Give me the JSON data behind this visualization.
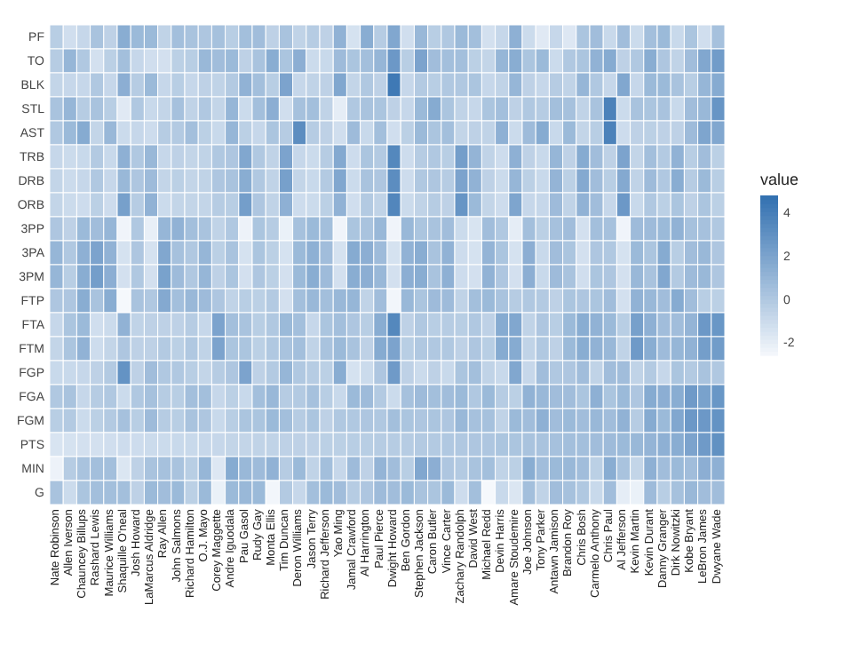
{
  "chart_data": {
    "type": "heatmap",
    "clabel": "value",
    "categories": [
      "Nate Robinson",
      "Allen Iverson",
      "Chauncey Billups",
      "Rashard Lewis",
      "Maurice Williams",
      "Shaquille O'neal",
      "Josh Howard",
      "LaMarcus Aldridge",
      "Ray Allen",
      "John Salmons",
      "Richard Hamilton",
      "O.J. Mayo",
      "Corey Maggette",
      "Andre Iguodala",
      "Pau Gasol",
      "Rudy Gay",
      "Monta Ellis",
      "Tim Duncan",
      "Deron Williams",
      "Jason Terry",
      "Richard Jefferson",
      "Yao Ming",
      "Jamal Crawford",
      "Al Harrington",
      "Paul Pierce",
      "Dwight Howard",
      "Ben Gordon",
      "Stephen Jackson",
      "Caron Butler",
      "Vince Carter",
      "Zachary Randolph",
      "David West",
      "Michael Redd",
      "Devin Harris",
      "Amare Stoudemire",
      "Joe Johnson",
      "Tony Parker",
      "Antawn Jamison",
      "Brandon Roy",
      "Chris Bosh",
      "Carmelo Anthony",
      "Chris Paul",
      "Al Jefferson",
      "Kevin Martin",
      "Kevin Durant",
      "Danny Granger",
      "Dirk Nowitzki",
      "Kobe Bryant",
      "LeBron James",
      "Dwyane Wade"
    ],
    "y_categories": [
      "PF",
      "TO",
      "BLK",
      "STL",
      "AST",
      "TRB",
      "DRB",
      "ORB",
      "3PP",
      "3PA",
      "3PM",
      "FTP",
      "FTA",
      "FTM",
      "FGP",
      "FGA",
      "FGM",
      "PTS",
      "MIN",
      "G"
    ],
    "cells": [
      [
        -0.3,
        -1.2,
        -0.8,
        0.3,
        -0.5,
        1.5,
        0.8,
        0.8,
        -0.6,
        0.5,
        0.3,
        0.1,
        0.4,
        -0.3,
        0.5,
        0.6,
        -0.5,
        0.3,
        -0.6,
        -0.2,
        -0.5,
        1.2,
        -1.4,
        1.5,
        -0.2,
        1.8,
        -1.2,
        0.9,
        -0.3,
        0.0,
        0.8,
        0.5,
        -1.3,
        -0.8,
        1.3,
        -1.0,
        -1.8,
        -0.8,
        -1.7,
        0.2,
        0.6,
        -0.9,
        0.6,
        -1.0,
        0.5,
        0.8,
        -0.9,
        0.2,
        -1.2,
        0.4
      ],
      [
        -0.2,
        1.0,
        0.0,
        -1.3,
        -0.4,
        0.5,
        -0.8,
        -1.2,
        -1.3,
        -0.4,
        -0.3,
        0.9,
        0.6,
        0.8,
        -0.5,
        0.3,
        1.5,
        0.2,
        1.4,
        -1.0,
        -0.9,
        0.7,
        0.2,
        0.5,
        1.0,
        2.6,
        -0.3,
        2.0,
        0.6,
        0.5,
        0.5,
        -0.4,
        -0.7,
        1.0,
        1.5,
        0.2,
        0.8,
        -1.0,
        0.0,
        0.2,
        1.2,
        1.6,
        -0.5,
        0.0,
        1.5,
        0.1,
        -0.6,
        0.6,
        1.8,
        2.4
      ],
      [
        -0.7,
        -0.8,
        -0.8,
        0.0,
        -0.8,
        1.4,
        -0.2,
        0.8,
        -0.8,
        -0.3,
        -0.8,
        -0.5,
        -0.6,
        -0.1,
        1.2,
        0.5,
        -0.3,
        2.0,
        -0.8,
        -0.6,
        -0.5,
        1.8,
        -0.7,
        0.0,
        -0.5,
        4.3,
        -0.8,
        -0.1,
        -0.3,
        0.0,
        0.0,
        0.2,
        -0.8,
        -0.6,
        1.0,
        -0.5,
        -0.8,
        -0.2,
        -0.6,
        1.0,
        0.0,
        -0.8,
        1.8,
        -0.8,
        0.8,
        0.8,
        0.3,
        -0.3,
        1.0,
        1.6
      ],
      [
        0.3,
        1.0,
        -0.2,
        0.3,
        -0.3,
        -1.8,
        0.0,
        -0.9,
        -0.7,
        0.4,
        -0.6,
        0.0,
        -0.7,
        1.0,
        -1.0,
        0.5,
        1.4,
        -1.2,
        0.4,
        0.5,
        -0.6,
        -2.0,
        0.0,
        0.3,
        0.2,
        -0.5,
        -0.8,
        0.8,
        1.6,
        0.2,
        -0.6,
        -0.8,
        0.2,
        0.5,
        -0.5,
        0.0,
        -0.2,
        0.5,
        0.4,
        -0.6,
        0.3,
        3.8,
        -1.0,
        0.3,
        0.2,
        0.3,
        -0.9,
        0.6,
        0.9,
        2.8
      ],
      [
        0.0,
        0.8,
        1.6,
        -0.7,
        0.9,
        -1.0,
        -0.8,
        -1.1,
        -0.2,
        -0.1,
        0.5,
        -0.4,
        -0.9,
        1.0,
        -0.4,
        -0.8,
        0.2,
        -0.2,
        3.2,
        -0.2,
        -0.5,
        -1.2,
        0.7,
        -0.9,
        0.5,
        -1.2,
        -0.4,
        0.8,
        0.2,
        0.5,
        -0.7,
        -0.5,
        -0.6,
        1.3,
        -1.0,
        0.7,
        1.6,
        -0.9,
        0.8,
        -0.7,
        -0.3,
        3.8,
        -1.1,
        -0.5,
        -0.4,
        -0.5,
        -0.5,
        0.7,
        1.9,
        1.8
      ],
      [
        -0.8,
        -1.0,
        -0.9,
        -0.1,
        -0.9,
        1.3,
        0.0,
        0.9,
        -0.8,
        -0.5,
        -0.7,
        -0.6,
        0.0,
        0.1,
        1.8,
        0.0,
        -0.6,
        2.0,
        -0.8,
        -1.0,
        -0.2,
        1.7,
        -1.1,
        0.2,
        -0.1,
        3.5,
        -1.1,
        -0.2,
        0.0,
        -0.3,
        2.3,
        1.1,
        -0.6,
        -1.1,
        1.3,
        -0.5,
        -0.9,
        1.0,
        -0.5,
        1.6,
        0.6,
        -0.5,
        2.0,
        -0.7,
        0.5,
        -0.1,
        1.2,
        -0.3,
        0.6,
        -0.4
      ],
      [
        -0.7,
        -1.0,
        -0.8,
        0.0,
        -0.8,
        0.9,
        0.1,
        0.7,
        -0.7,
        -0.4,
        -0.7,
        -0.6,
        0.1,
        0.3,
        1.5,
        0.0,
        -0.6,
        2.2,
        -0.7,
        -0.9,
        -0.1,
        1.8,
        -1.0,
        0.3,
        0.1,
        3.2,
        -1.1,
        0.0,
        0.1,
        -0.2,
        2.0,
        1.2,
        -0.5,
        -1.0,
        1.0,
        -0.4,
        -0.9,
        1.1,
        -0.4,
        1.7,
        0.6,
        -0.3,
        1.7,
        -0.6,
        0.7,
        0.0,
        1.5,
        -0.2,
        0.8,
        -0.3
      ],
      [
        -0.7,
        -1.0,
        -1.1,
        -0.4,
        -1.1,
        2.2,
        -0.2,
        1.2,
        -1.0,
        -0.7,
        -0.7,
        -0.7,
        -0.2,
        -0.3,
        2.3,
        0.1,
        -0.6,
        1.3,
        -1.1,
        -1.0,
        -0.4,
        1.2,
        -1.2,
        -0.1,
        -0.6,
        3.6,
        -1.0,
        -0.6,
        -0.2,
        -0.5,
        2.8,
        0.8,
        -0.7,
        -1.1,
        1.9,
        -0.8,
        -0.8,
        0.7,
        -0.6,
        1.2,
        0.6,
        -0.8,
        2.6,
        -0.9,
        0.0,
        -0.4,
        0.2,
        -0.5,
        0.2,
        -0.4
      ],
      [
        0.1,
        -0.5,
        0.8,
        0.6,
        1.0,
        -2.4,
        0.0,
        -2.1,
        1.0,
        1.2,
        0.5,
        0.3,
        -0.6,
        0.0,
        -2.3,
        0.2,
        -0.2,
        -2.2,
        0.4,
        0.8,
        0.5,
        -2.4,
        0.2,
        0.3,
        0.9,
        -2.4,
        0.9,
        0.2,
        0.3,
        0.6,
        -1.0,
        -1.5,
        0.6,
        0.0,
        -2.0,
        0.5,
        -0.4,
        0.4,
        0.6,
        -1.3,
        0.5,
        0.4,
        -2.4,
        0.7,
        0.7,
        0.8,
        1.2,
        0.4,
        0.4,
        0.0
      ],
      [
        1.0,
        0.0,
        1.3,
        2.0,
        1.2,
        -1.4,
        0.1,
        -1.4,
        1.8,
        0.4,
        0.0,
        1.0,
        -0.4,
        0.3,
        -1.4,
        0.2,
        -0.4,
        -1.4,
        0.8,
        1.3,
        0.6,
        -1.4,
        1.6,
        1.4,
        0.7,
        -1.4,
        1.2,
        1.5,
        0.3,
        1.2,
        -1.1,
        -1.4,
        1.1,
        0.2,
        -1.4,
        1.4,
        -0.9,
        0.6,
        0.2,
        -1.3,
        0.1,
        0.0,
        -1.4,
        0.8,
        0.2,
        1.6,
        -0.3,
        0.6,
        0.9,
        0.1
      ],
      [
        1.0,
        -0.3,
        1.5,
        2.3,
        1.4,
        -1.3,
        0.0,
        -1.3,
        2.1,
        0.7,
        0.0,
        1.0,
        -0.5,
        0.2,
        -1.3,
        0.1,
        -0.4,
        -1.3,
        0.8,
        1.5,
        0.7,
        -1.3,
        1.5,
        1.4,
        0.9,
        -1.3,
        1.4,
        1.5,
        0.3,
        1.3,
        -1.1,
        -1.3,
        1.2,
        0.1,
        -1.3,
        1.4,
        -0.9,
        0.7,
        0.3,
        -1.2,
        0.2,
        0.1,
        -1.3,
        0.9,
        0.3,
        1.8,
        -0.1,
        0.7,
        0.9,
        0.1
      ],
      [
        0.1,
        0.1,
        1.5,
        0.3,
        1.5,
        -2.6,
        0.3,
        0.0,
        1.7,
        0.5,
        0.9,
        0.7,
        0.1,
        -0.6,
        -0.3,
        -0.4,
        -0.1,
        -1.3,
        0.5,
        0.9,
        0.5,
        0.9,
        1.0,
        -0.6,
        0.6,
        -2.5,
        0.9,
        0.2,
        0.7,
        0.7,
        -0.6,
        0.5,
        0.8,
        0.3,
        -0.2,
        0.0,
        -0.1,
        -0.5,
        0.2,
        0.1,
        0.2,
        0.6,
        -1.3,
        1.2,
        0.9,
        0.6,
        1.6,
        0.6,
        -0.3,
        -0.4
      ],
      [
        -0.8,
        0.2,
        0.8,
        -1.2,
        -1.0,
        1.2,
        -0.6,
        -0.5,
        -0.5,
        -0.5,
        -0.2,
        -0.8,
        2.0,
        0.5,
        0.3,
        -0.3,
        0.0,
        0.8,
        0.5,
        -0.8,
        0.2,
        0.5,
        0.1,
        -0.3,
        1.5,
        3.5,
        -0.5,
        0.0,
        -0.3,
        -0.2,
        -0.3,
        0.0,
        -0.5,
        1.6,
        1.8,
        -0.6,
        0.1,
        -0.3,
        0.8,
        1.5,
        1.2,
        0.8,
        -0.3,
        2.2,
        1.3,
        0.6,
        0.6,
        1.1,
        2.6,
        2.7
      ],
      [
        -0.7,
        0.2,
        1.2,
        -1.1,
        -0.7,
        0.1,
        -0.5,
        -0.5,
        -0.1,
        -0.4,
        0.0,
        -0.6,
        2.0,
        0.2,
        0.2,
        -0.4,
        0.0,
        0.3,
        0.5,
        -0.6,
        0.3,
        0.8,
        0.3,
        -0.5,
        1.6,
        2.0,
        -0.3,
        0.0,
        0.0,
        0.0,
        -0.5,
        0.1,
        -0.3,
        1.6,
        1.6,
        -0.6,
        0.0,
        -0.5,
        0.8,
        1.5,
        1.2,
        0.9,
        -0.6,
        2.5,
        1.5,
        0.7,
        1.0,
        1.2,
        2.3,
        2.4
      ],
      [
        -0.9,
        -0.9,
        -0.8,
        -0.5,
        -0.1,
        2.9,
        -0.5,
        0.6,
        0.0,
        0.0,
        -0.3,
        -0.7,
        -0.2,
        0.1,
        2.0,
        -0.5,
        -0.1,
        1.0,
        0.0,
        -0.2,
        -0.4,
        1.5,
        -1.4,
        -1.0,
        0.1,
        2.5,
        -0.5,
        -1.0,
        -0.5,
        -0.9,
        0.2,
        0.5,
        -0.6,
        -0.9,
        1.8,
        -0.8,
        0.6,
        0.0,
        0.1,
        0.6,
        -0.6,
        0.6,
        0.6,
        -0.6,
        -0.1,
        -0.8,
        0.2,
        -0.1,
        0.3,
        0.0
      ],
      [
        0.0,
        0.3,
        -0.8,
        -0.2,
        0.0,
        -1.0,
        0.0,
        0.4,
        -0.2,
        -0.3,
        0.5,
        0.5,
        -0.8,
        -0.4,
        -0.9,
        0.5,
        0.9,
        -0.2,
        -0.1,
        0.4,
        -0.3,
        -0.9,
        0.8,
        0.7,
        -0.1,
        -1.0,
        0.4,
        0.7,
        0.5,
        0.6,
        0.8,
        0.0,
        0.8,
        -0.2,
        -0.4,
        1.2,
        0.9,
        0.6,
        0.6,
        0.2,
        1.3,
        0.2,
        0.8,
        0.1,
        1.6,
        1.4,
        1.5,
        2.5,
        2.1,
        2.7
      ],
      [
        -0.3,
        -0.1,
        -1.0,
        -0.4,
        -0.1,
        0.4,
        -0.3,
        0.7,
        -0.2,
        -0.3,
        0.3,
        0.1,
        -0.9,
        -0.3,
        0.2,
        0.2,
        0.8,
        0.5,
        -0.2,
        0.2,
        -0.5,
        0.0,
        0.0,
        0.1,
        0.0,
        0.5,
        0.2,
        0.1,
        0.2,
        0.1,
        0.9,
        0.4,
        0.4,
        -0.6,
        0.8,
        0.6,
        1.3,
        0.6,
        0.8,
        0.6,
        0.9,
        0.6,
        1.2,
        -0.2,
        1.6,
        0.8,
        1.8,
        2.6,
        2.6,
        2.9
      ],
      [
        -1.5,
        -1.4,
        -1.3,
        -1.3,
        -1.2,
        -1.1,
        -1.1,
        -1.0,
        -1.0,
        -0.9,
        -0.9,
        -0.8,
        -0.8,
        -0.7,
        -0.7,
        -0.6,
        -0.6,
        -0.5,
        -0.5,
        -0.5,
        -0.4,
        -0.4,
        -0.3,
        -0.3,
        -0.2,
        -0.2,
        -0.2,
        -0.1,
        -0.1,
        0.0,
        0.0,
        0.1,
        0.1,
        0.2,
        0.2,
        0.3,
        0.3,
        0.4,
        0.5,
        0.5,
        0.6,
        0.7,
        0.8,
        0.9,
        1.1,
        1.3,
        1.5,
        2.0,
        2.5,
        3.0
      ],
      [
        -2.3,
        -0.2,
        0.3,
        0.5,
        0.5,
        -1.6,
        -0.5,
        0.3,
        0.4,
        0.3,
        -0.3,
        1.0,
        -1.7,
        1.6,
        0.9,
        0.7,
        1.2,
        -0.2,
        0.8,
        -0.6,
        0.5,
        -0.8,
        0.7,
        -0.5,
        1.1,
        0.6,
        -0.3,
        1.8,
        1.4,
        0.1,
        -0.1,
        0.3,
        0.5,
        -0.6,
        -0.4,
        1.5,
        0.6,
        0.8,
        0.9,
        0.6,
        -0.4,
        1.5,
        0.3,
        -0.7,
        1.3,
        0.6,
        0.8,
        0.6,
        1.4,
        1.3
      ],
      [
        0.3,
        -1.0,
        0.2,
        0.5,
        0.5,
        0.5,
        -0.5,
        0.8,
        0.6,
        0.8,
        -0.4,
        0.8,
        -2.2,
        0.8,
        0.9,
        0.8,
        -2.5,
        -0.1,
        -0.8,
        0.5,
        0.8,
        0.6,
        -0.2,
        0.1,
        0.7,
        0.6,
        0.8,
        0.3,
        0.2,
        0.8,
        -1.1,
        0.5,
        -2.6,
        -0.9,
        -1.6,
        0.5,
        -0.6,
        0.6,
        0.4,
        0.0,
        -0.9,
        0.6,
        -2.0,
        -2.2,
        0.7,
        -0.3,
        0.4,
        0.9,
        0.6,
        0.6
      ]
    ],
    "clim": [
      -2.6,
      4.8
    ],
    "cticks": [
      -2,
      0,
      2,
      4
    ]
  }
}
